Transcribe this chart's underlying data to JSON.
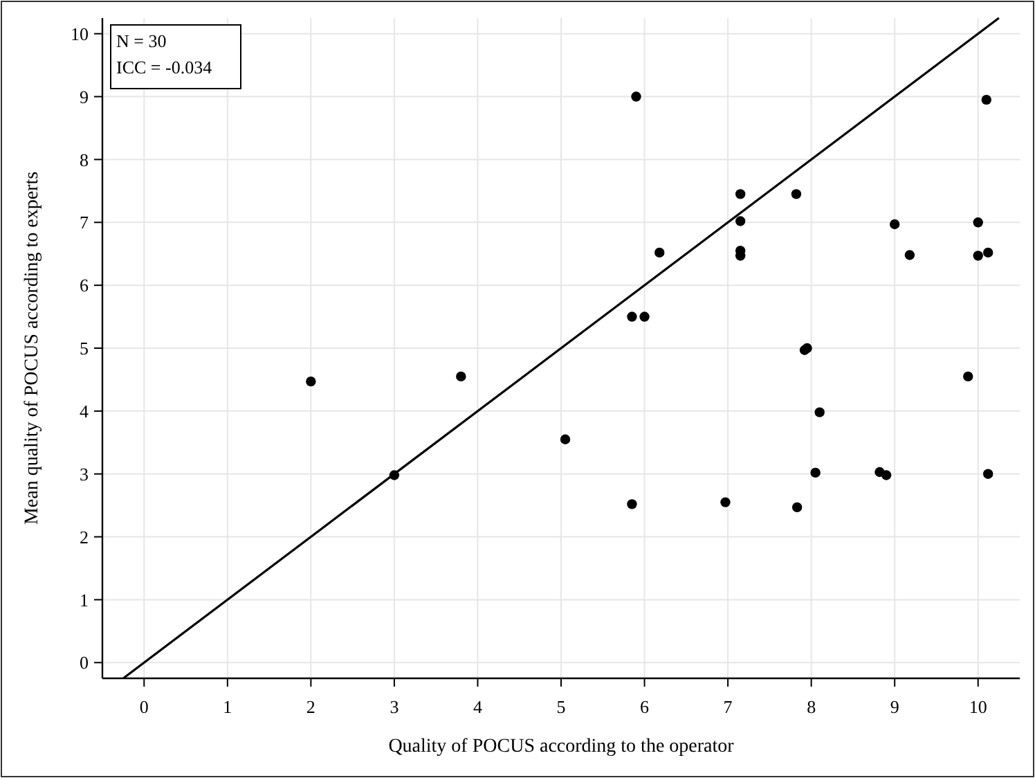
{
  "chart_data": {
    "type": "scatter",
    "xlabel": "Quality of POCUS according to the operator",
    "ylabel": "Mean quality of POCUS according to experts",
    "xlim": [
      -0.5,
      10.5
    ],
    "ylim": [
      -0.25,
      10.25
    ],
    "xticks": [
      0,
      1,
      2,
      3,
      4,
      5,
      6,
      7,
      8,
      9,
      10
    ],
    "yticks": [
      0,
      1,
      2,
      3,
      4,
      5,
      6,
      7,
      8,
      9,
      10
    ],
    "grid": true,
    "marker": "circle",
    "series": [
      {
        "color": "#000000",
        "x": [
          2.0,
          3.0,
          3.8,
          5.05,
          5.85,
          5.85,
          6.0,
          5.9,
          6.18,
          6.97,
          7.15,
          7.15,
          7.15,
          7.15,
          7.82,
          7.83,
          7.92,
          7.95,
          8.05,
          8.1,
          8.82,
          8.9,
          9.0,
          9.18,
          9.88,
          10.0,
          10.0,
          10.12,
          10.1,
          10.12
        ],
        "values": [
          4.47,
          2.98,
          4.55,
          3.55,
          2.52,
          5.5,
          5.5,
          9.0,
          6.52,
          2.55,
          7.45,
          7.02,
          6.55,
          6.47,
          7.45,
          2.47,
          4.97,
          5.0,
          3.02,
          3.98,
          3.03,
          2.98,
          6.97,
          6.48,
          4.55,
          7.0,
          6.47,
          6.52,
          8.95,
          3.0
        ]
      },
      {
        "type": "line",
        "color": "#000000",
        "x": [
          -0.25,
          10.25
        ],
        "values": [
          -0.25,
          10.25
        ],
        "marker": "none"
      }
    ],
    "annotations": [
      "N = 30",
      "ICC = -0.034"
    ]
  }
}
